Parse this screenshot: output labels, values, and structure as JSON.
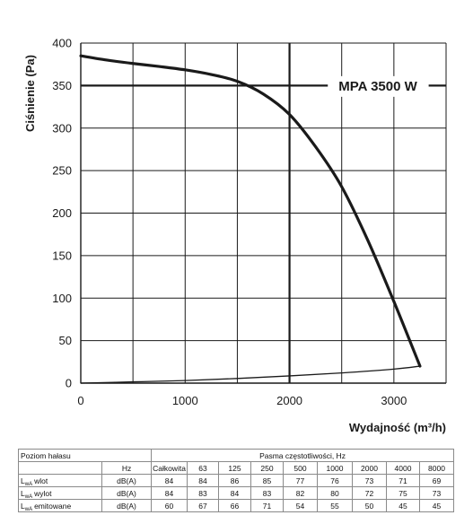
{
  "chart_data": {
    "type": "line",
    "xlabel": "Wydajność (m³/h)",
    "ylabel": "Ciśnienie (Pa)",
    "xlim": [
      0,
      3500
    ],
    "ylim": [
      0,
      400
    ],
    "x_ticks": [
      0,
      1000,
      2000,
      3000
    ],
    "y_ticks": [
      0,
      50,
      100,
      150,
      200,
      250,
      300,
      350,
      400
    ],
    "x_grid_step": 500,
    "y_grid_step": 50,
    "grid": true,
    "reference_lines": {
      "x": 2000,
      "y": 350
    },
    "annotation": "MPA 3500 W",
    "line_color": "#1a1a1a",
    "series": [
      {
        "x": [
          0,
          250,
          500,
          750,
          1000,
          1250,
          1500,
          1750,
          2000,
          2250,
          2500,
          2750,
          3000,
          3250
        ],
        "y": [
          385,
          380,
          376,
          372.5,
          368.5,
          363,
          355,
          340,
          316,
          278,
          231,
          168,
          96,
          20
        ]
      },
      {
        "x": [
          0,
          500,
          1000,
          1500,
          2000,
          2500,
          3000,
          3250
        ],
        "y": [
          0,
          1.5,
          3,
          5.5,
          8.5,
          12,
          16.5,
          20
        ]
      }
    ]
  },
  "noise_table": {
    "title": "Poziom hałasu",
    "bands_header": "Pasma częstotliwości, Hz",
    "unit_header": "Hz",
    "total_header": "Całkowita",
    "bands": [
      "63",
      "125",
      "250",
      "500",
      "1000",
      "2000",
      "4000",
      "8000"
    ],
    "rows": [
      {
        "symbol": "L",
        "symbol_sub": "wA",
        "name": "wlot",
        "unit": "dB(A)",
        "total": "84",
        "values": [
          "84",
          "86",
          "85",
          "77",
          "76",
          "73",
          "71",
          "69"
        ]
      },
      {
        "symbol": "L",
        "symbol_sub": "wA",
        "name": "wylot",
        "unit": "dB(A)",
        "total": "84",
        "values": [
          "83",
          "84",
          "83",
          "82",
          "80",
          "72",
          "75",
          "73"
        ]
      },
      {
        "symbol": "L",
        "symbol_sub": "wA",
        "name": "emitowane",
        "unit": "dB(A)",
        "total": "60",
        "values": [
          "67",
          "66",
          "71",
          "54",
          "55",
          "50",
          "45",
          "45"
        ]
      }
    ]
  }
}
